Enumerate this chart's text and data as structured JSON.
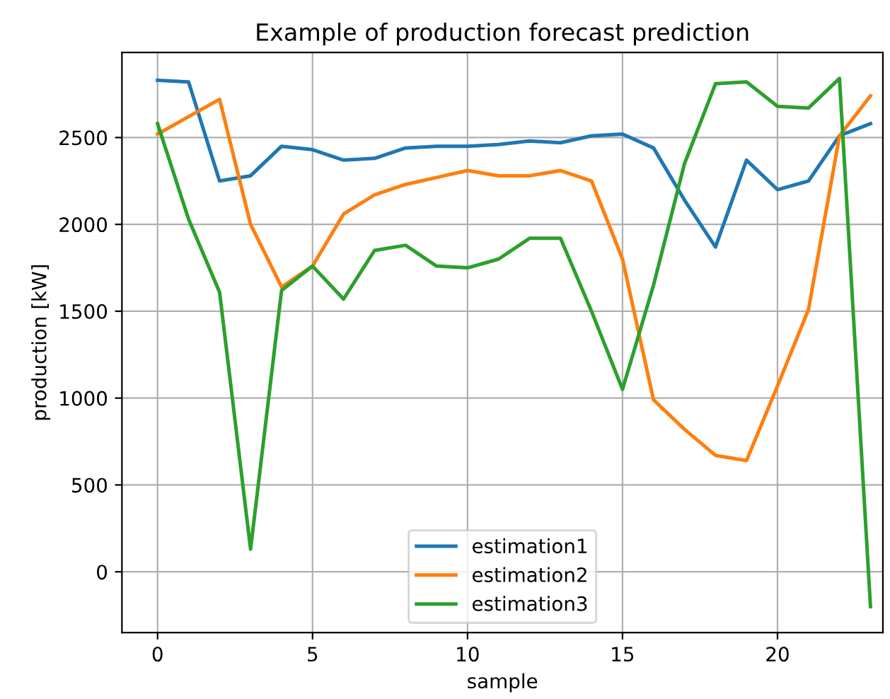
{
  "chart_data": {
    "type": "line",
    "title": "Example of production forecast prediction",
    "xlabel": "sample",
    "ylabel": "production [kW]",
    "x": [
      0,
      1,
      2,
      3,
      4,
      5,
      6,
      7,
      8,
      9,
      10,
      11,
      12,
      13,
      14,
      15,
      16,
      17,
      18,
      19,
      20,
      21,
      22,
      23
    ],
    "xlim": [
      -1.15,
      23.4
    ],
    "xticks": [
      0,
      5,
      10,
      15,
      20
    ],
    "ylim": [
      -350,
      2990
    ],
    "yticks": [
      0,
      500,
      1000,
      1500,
      2000,
      2500
    ],
    "grid": true,
    "legend": "bottom",
    "marker": "none",
    "line_style": "solid",
    "series": [
      {
        "name": "estimation1",
        "color": "#1f77b4",
        "values": [
          2830,
          2820,
          2250,
          2280,
          2450,
          2430,
          2370,
          2380,
          2440,
          2450,
          2450,
          2460,
          2480,
          2470,
          2510,
          2520,
          2440,
          2140,
          1870,
          2370,
          2200,
          2250,
          2510,
          2580
        ]
      },
      {
        "name": "estimation2",
        "color": "#ff7f0e",
        "values": [
          2520,
          2620,
          2720,
          2000,
          1640,
          1760,
          2060,
          2170,
          2230,
          2270,
          2310,
          2280,
          2280,
          2310,
          2250,
          1800,
          990,
          820,
          670,
          640,
          1070,
          1510,
          2510,
          2740
        ]
      },
      {
        "name": "estimation3",
        "color": "#2ca02c",
        "values": [
          2580,
          2030,
          1610,
          130,
          1620,
          1760,
          1570,
          1850,
          1880,
          1760,
          1750,
          1800,
          1920,
          1920,
          1500,
          1050,
          1650,
          2350,
          2810,
          2820,
          2680,
          2670,
          2840,
          -200
        ]
      }
    ]
  }
}
